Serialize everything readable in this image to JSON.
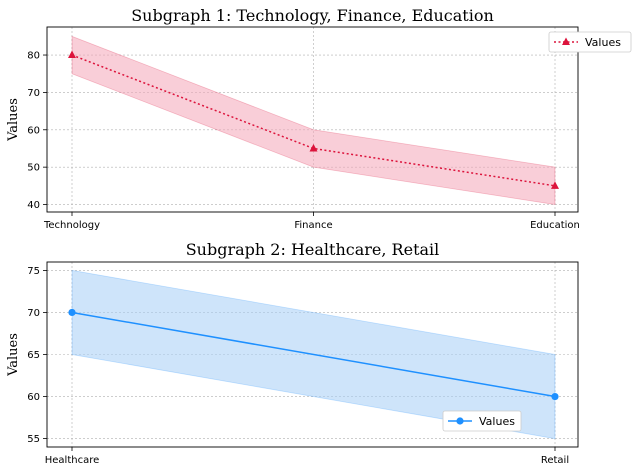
{
  "chart_data": [
    {
      "type": "line",
      "title": "Subgraph 1: Technology, Finance, Education",
      "xlabel": "",
      "ylabel": "Values",
      "categories": [
        "Technology",
        "Finance",
        "Education"
      ],
      "series": [
        {
          "name": "Values",
          "values": [
            80,
            55,
            45
          ],
          "lower": [
            75,
            50,
            40
          ],
          "upper": [
            85,
            60,
            50
          ],
          "color": "#dc143c",
          "fill_color": "#f4a6b8",
          "line_style": "dotted",
          "marker": "triangle"
        }
      ],
      "ylim": [
        38,
        87.5
      ],
      "yticks": [
        40,
        50,
        60,
        70,
        80
      ],
      "grid": true,
      "legend_position": "outside-top-right"
    },
    {
      "type": "line",
      "title": "Subgraph 2: Healthcare, Retail",
      "xlabel": "",
      "ylabel": "Values",
      "categories": [
        "Healthcare",
        "Retail"
      ],
      "series": [
        {
          "name": "Values",
          "values": [
            70,
            60
          ],
          "lower": [
            65,
            55
          ],
          "upper": [
            75,
            65
          ],
          "color": "#1e90ff",
          "fill_color": "#a6cdf5",
          "line_style": "solid",
          "marker": "circle"
        }
      ],
      "ylim": [
        54,
        76
      ],
      "yticks": [
        55,
        60,
        65,
        70,
        75
      ],
      "grid": true,
      "legend_position": "lower-right"
    }
  ]
}
